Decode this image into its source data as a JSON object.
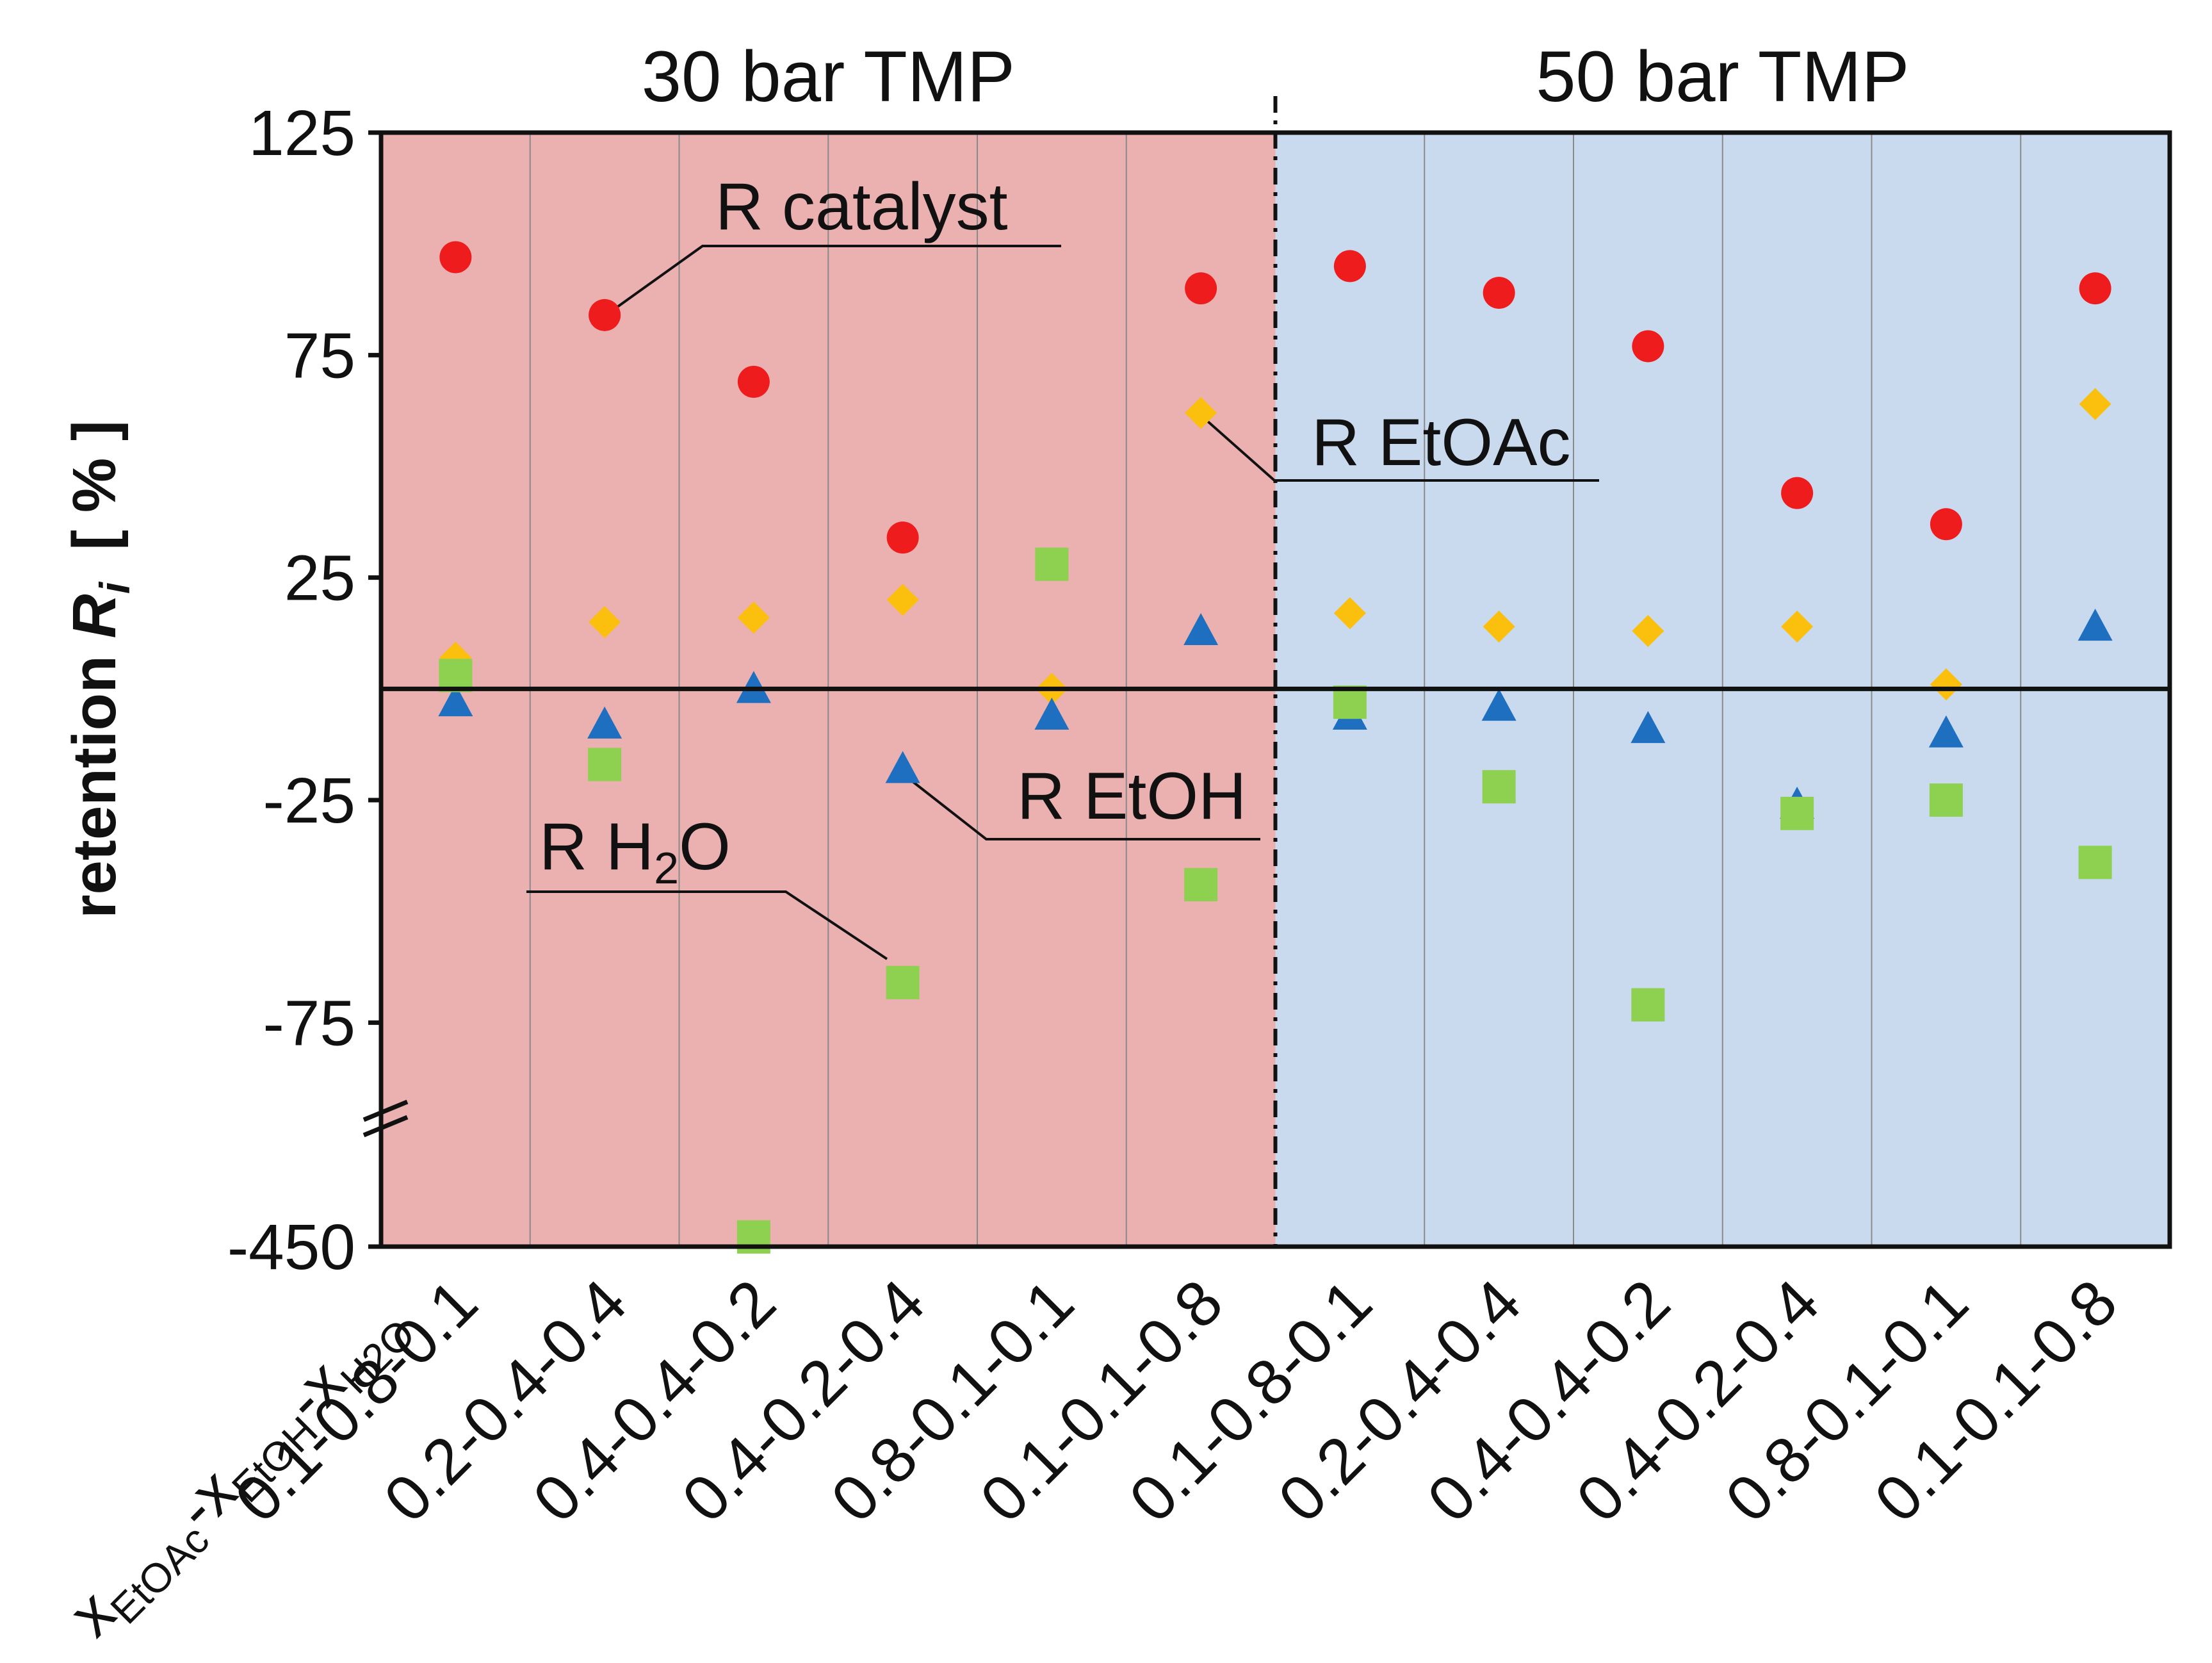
{
  "chart_data": {
    "type": "scatter",
    "panels": [
      {
        "title": "30 bar TMP",
        "color": "#ebb0b0"
      },
      {
        "title": "50 bar TMP",
        "color": "#c9d9ee"
      }
    ],
    "categories": [
      "0.1-0.8-0.1",
      "0.2-0.4-0.4",
      "0.4-0.4-0.2",
      "0.4-0.2-0.4",
      "0.8-0.1-0.1",
      "0.1-0.1-0.8",
      "0.1-0.8-0.1",
      "0.2-0.4-0.4",
      "0.4-0.4-0.2",
      "0.4-0.2-0.4",
      "0.8-0.1-0.1",
      "0.1-0.1-0.8"
    ],
    "xlabel": {
      "x": "x",
      "sub1": "EtOAc",
      "sub2": "EtOH",
      "sub3": "H2O"
    },
    "ylabel": {
      "main": "retention ",
      "italic": "R",
      "sub": "i",
      "unit": "[ % ]"
    },
    "yticks": [
      "125",
      "75",
      "25",
      "-25",
      "-75",
      "-450"
    ],
    "ylim": [
      -450,
      125
    ],
    "axis_break": true,
    "series": [
      {
        "name": "R catalyst",
        "marker": "circle",
        "color": "#ee1c1c",
        "values": [
          97,
          84,
          69,
          34,
          null,
          90,
          95,
          89,
          77,
          44,
          37,
          90
        ]
      },
      {
        "name": "R EtOAc",
        "marker": "diamond",
        "color": "#fbbf0e",
        "values": [
          7,
          15,
          16,
          20,
          0,
          62,
          17,
          14,
          13,
          14,
          1,
          64
        ]
      },
      {
        "name": "R EtOH",
        "marker": "triangle",
        "color": "#1f6fc0",
        "values": [
          -3,
          -8,
          0,
          -18,
          -6,
          13,
          -6,
          -4,
          -9,
          -26,
          -10,
          14
        ]
      },
      {
        "name": "R H2O",
        "marker": "square",
        "color": "#8ed150",
        "values": [
          3,
          -17,
          -420,
          -66,
          28,
          -44,
          -3,
          -22,
          -71,
          -28,
          -25,
          -39
        ]
      }
    ],
    "annotations": {
      "catalyst": "R catalyst",
      "etoac": "R EtOAc",
      "etoh": "R EtOH",
      "h2o_main": "R H",
      "h2o_sub": "2",
      "h2o_end": "O"
    }
  }
}
